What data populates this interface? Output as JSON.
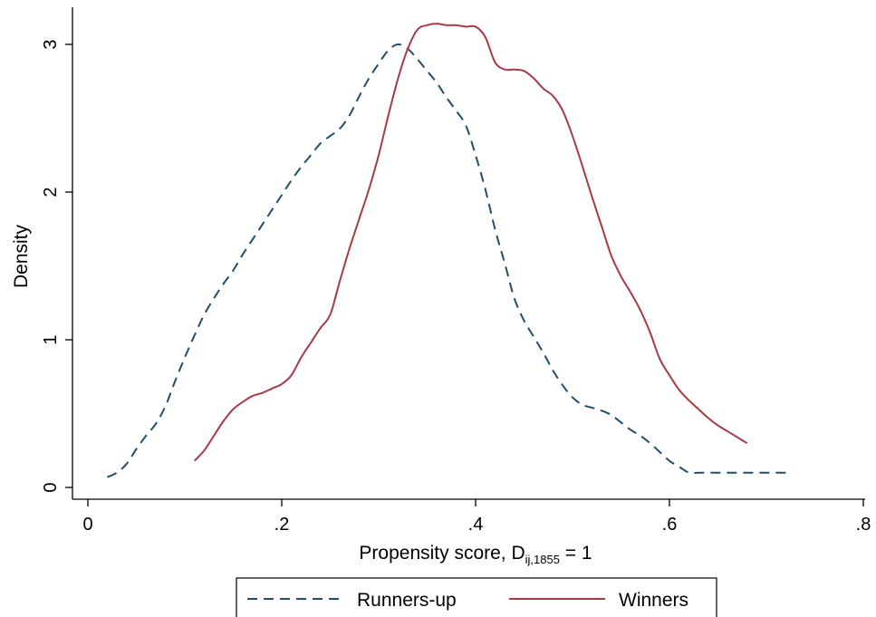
{
  "chart_data": {
    "type": "line",
    "title": "",
    "xlabel": "Propensity score, D",
    "xlabel_subscript": "ij,1855",
    "xlabel_suffix": " = 1",
    "ylabel": "Density",
    "xlim": [
      0,
      0.8
    ],
    "ylim": [
      0,
      3.2
    ],
    "x_ticks": [
      {
        "value": 0,
        "label": "0"
      },
      {
        "value": 0.2,
        "label": ".2"
      },
      {
        "value": 0.4,
        "label": ".4"
      },
      {
        "value": 0.6,
        "label": ".6"
      },
      {
        "value": 0.8,
        "label": ".8"
      }
    ],
    "y_ticks": [
      {
        "value": 0,
        "label": "0"
      },
      {
        "value": 1,
        "label": "1"
      },
      {
        "value": 2,
        "label": "2"
      },
      {
        "value": 3,
        "label": "3"
      }
    ],
    "grid": false,
    "legend_position": "bottom",
    "series": [
      {
        "name": "Runners-up",
        "color": "#1f4e6e",
        "dash": "dashed",
        "x": [
          0.02,
          0.03,
          0.04,
          0.05,
          0.06,
          0.07,
          0.08,
          0.09,
          0.1,
          0.11,
          0.12,
          0.13,
          0.14,
          0.15,
          0.16,
          0.17,
          0.18,
          0.19,
          0.2,
          0.21,
          0.22,
          0.23,
          0.24,
          0.25,
          0.26,
          0.27,
          0.28,
          0.29,
          0.3,
          0.31,
          0.32,
          0.33,
          0.34,
          0.35,
          0.36,
          0.37,
          0.38,
          0.39,
          0.4,
          0.41,
          0.42,
          0.43,
          0.44,
          0.45,
          0.46,
          0.47,
          0.48,
          0.49,
          0.5,
          0.51,
          0.52,
          0.53,
          0.54,
          0.55,
          0.56,
          0.57,
          0.58,
          0.59,
          0.6,
          0.61,
          0.62,
          0.63,
          0.64,
          0.65,
          0.66,
          0.67,
          0.68,
          0.69,
          0.7,
          0.71,
          0.72
        ],
        "values": [
          0.07,
          0.1,
          0.16,
          0.26,
          0.35,
          0.43,
          0.55,
          0.72,
          0.88,
          1.03,
          1.17,
          1.28,
          1.38,
          1.47,
          1.58,
          1.68,
          1.78,
          1.88,
          1.98,
          2.08,
          2.17,
          2.25,
          2.33,
          2.38,
          2.43,
          2.52,
          2.65,
          2.77,
          2.87,
          2.96,
          3.0,
          2.97,
          2.9,
          2.82,
          2.74,
          2.64,
          2.55,
          2.45,
          2.25,
          2.02,
          1.75,
          1.52,
          1.28,
          1.13,
          1.02,
          0.91,
          0.79,
          0.69,
          0.61,
          0.56,
          0.54,
          0.52,
          0.49,
          0.44,
          0.39,
          0.35,
          0.3,
          0.24,
          0.18,
          0.14,
          0.1,
          0.1,
          0.1,
          0.1,
          0.1,
          0.1,
          0.1,
          0.1,
          0.1,
          0.1,
          0.1
        ]
      },
      {
        "name": "Winners",
        "color": "#a83a46",
        "dash": "solid",
        "x": [
          0.11,
          0.12,
          0.13,
          0.14,
          0.15,
          0.16,
          0.17,
          0.18,
          0.19,
          0.2,
          0.21,
          0.22,
          0.23,
          0.24,
          0.25,
          0.26,
          0.27,
          0.28,
          0.29,
          0.3,
          0.31,
          0.32,
          0.33,
          0.34,
          0.35,
          0.36,
          0.37,
          0.38,
          0.39,
          0.4,
          0.41,
          0.42,
          0.43,
          0.44,
          0.45,
          0.46,
          0.47,
          0.48,
          0.49,
          0.5,
          0.51,
          0.52,
          0.53,
          0.54,
          0.55,
          0.56,
          0.57,
          0.58,
          0.59,
          0.6,
          0.61,
          0.62,
          0.63,
          0.64,
          0.65,
          0.66,
          0.67,
          0.68
        ],
        "values": [
          0.18,
          0.25,
          0.35,
          0.45,
          0.53,
          0.58,
          0.62,
          0.64,
          0.67,
          0.7,
          0.76,
          0.88,
          0.98,
          1.08,
          1.17,
          1.4,
          1.62,
          1.82,
          2.02,
          2.25,
          2.52,
          2.77,
          2.97,
          3.1,
          3.13,
          3.14,
          3.13,
          3.13,
          3.12,
          3.12,
          3.05,
          2.88,
          2.83,
          2.83,
          2.82,
          2.77,
          2.7,
          2.65,
          2.55,
          2.38,
          2.18,
          1.97,
          1.77,
          1.57,
          1.43,
          1.32,
          1.2,
          1.05,
          0.87,
          0.76,
          0.66,
          0.59,
          0.53,
          0.47,
          0.42,
          0.38,
          0.34,
          0.3
        ]
      }
    ]
  }
}
